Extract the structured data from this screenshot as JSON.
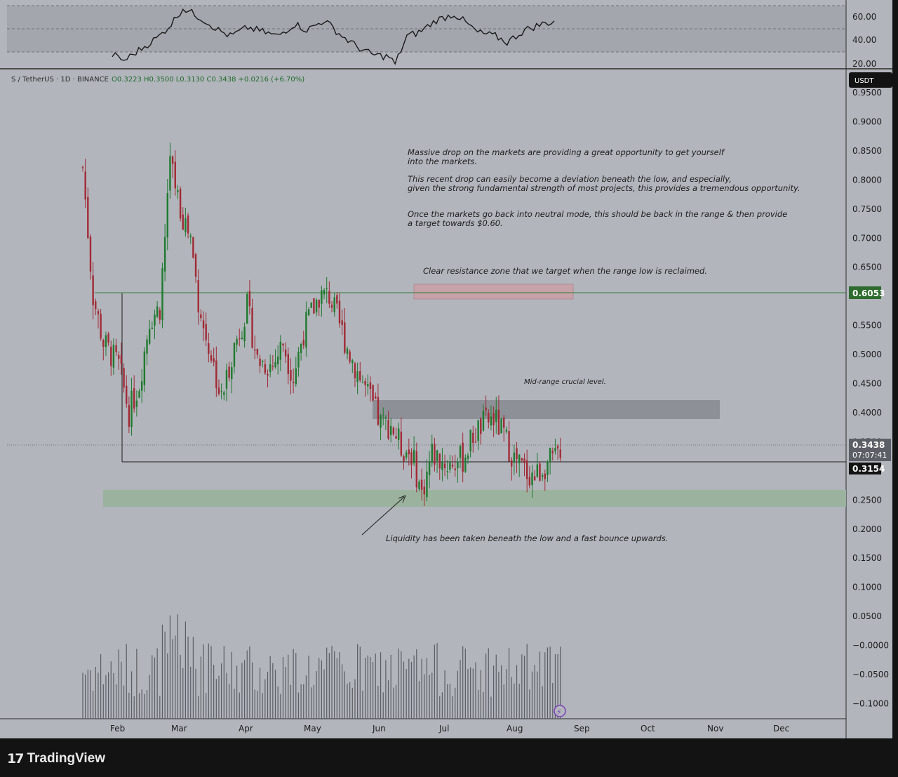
{
  "app": {
    "brand": "TradingView",
    "brand_logo": "17"
  },
  "colors": {
    "chart_bg": "#b2b5bc",
    "frame_bg": "#131313",
    "up": "#1f7a2e",
    "down": "#a12a35",
    "resistance_zone": "#c7a2a8",
    "mid_zone": "#8d9096",
    "support_zone": "#9bb39e",
    "resistance_line": "#2e7d32",
    "text": "#1c1c1c"
  },
  "header": {
    "symbol": "S / TetherUS · 1D · BINANCE",
    "ohlc": "O0.3223  H0.3500  L0.3130  C0.3438  +0.0216 (+6.70%)"
  },
  "price_axis": {
    "currency": "USDT",
    "ticks": [
      "0.9500",
      "0.9000",
      "0.8500",
      "0.8000",
      "0.7500",
      "0.7000",
      "0.6500",
      "0.6000",
      "0.5500",
      "0.5000",
      "0.4500",
      "0.4000",
      "0.3500",
      "0.3000",
      "0.2500",
      "0.2000",
      "0.1500",
      "0.1000",
      "0.0500",
      "−0.0000",
      "−0.0500",
      "−0.1000"
    ],
    "resistance_label": "0.6053",
    "last_price_label": "0.3438",
    "countdown": "07:07:41",
    "range_low_label": "0.3154"
  },
  "rsi_axis": {
    "ticks": [
      "60.00",
      "40.00",
      "20.00"
    ]
  },
  "time_axis": {
    "months": [
      "Feb",
      "Mar",
      "Apr",
      "May",
      "Jun",
      "Jul",
      "Aug",
      "Sep",
      "Oct",
      "Nov",
      "Dec"
    ]
  },
  "annotations": {
    "main_line1": "Massive drop on the markets are providing a great opportunity to get yourself",
    "main_line2": "into the markets.",
    "main_line3": "This recent drop can easily become a deviation beneath the low, and especially,",
    "main_line4": "given the strong fundamental strength of most projects, this provides a tremendous opportunity.",
    "main_line5": "Once the markets go back into neutral mode, this should be back in the range & then provide",
    "main_line6": "a target towards $0.60.",
    "resistance": "Clear resistance zone that we target when the range low is reclaimed.",
    "midrange": "Mid-range crucial level.",
    "liquidity": "Liquidity has been taken beneath the low and a fast bounce upwards."
  },
  "chart_data": {
    "type": "candlestick",
    "symbol": "S/USDT",
    "timeframe": "1D",
    "levels": {
      "resistance": 0.6053,
      "range_low": 0.3154,
      "last_price": 0.3438
    },
    "zones": [
      {
        "low": 0.59,
        "high": 0.615
      },
      {
        "low": 0.39,
        "high": 0.42
      },
      {
        "low": 0.235,
        "high": 0.265
      }
    ],
    "ylim": [
      -0.13,
      0.96
    ],
    "rsi_ylim": [
      20,
      70
    ],
    "path_anchors": [
      [
        0,
        0.82
      ],
      [
        4,
        0.6
      ],
      [
        8,
        0.52
      ],
      [
        14,
        0.48
      ],
      [
        18,
        0.4
      ],
      [
        22,
        0.45
      ],
      [
        26,
        0.56
      ],
      [
        30,
        0.58
      ],
      [
        34,
        0.83
      ],
      [
        38,
        0.75
      ],
      [
        42,
        0.7
      ],
      [
        46,
        0.56
      ],
      [
        50,
        0.5
      ],
      [
        54,
        0.42
      ],
      [
        58,
        0.5
      ],
      [
        64,
        0.58
      ],
      [
        68,
        0.49
      ],
      [
        74,
        0.48
      ],
      [
        78,
        0.52
      ],
      [
        82,
        0.46
      ],
      [
        86,
        0.54
      ],
      [
        92,
        0.6
      ],
      [
        96,
        0.6
      ],
      [
        100,
        0.55
      ],
      [
        104,
        0.5
      ],
      [
        108,
        0.46
      ],
      [
        112,
        0.42
      ],
      [
        116,
        0.38
      ],
      [
        120,
        0.38
      ],
      [
        124,
        0.34
      ],
      [
        128,
        0.33
      ],
      [
        132,
        0.26
      ],
      [
        136,
        0.33
      ],
      [
        142,
        0.31
      ],
      [
        148,
        0.32
      ],
      [
        152,
        0.36
      ],
      [
        156,
        0.38
      ],
      [
        160,
        0.39
      ],
      [
        164,
        0.36
      ],
      [
        168,
        0.32
      ],
      [
        172,
        0.3
      ],
      [
        176,
        0.29
      ],
      [
        180,
        0.31
      ],
      [
        184,
        0.32
      ],
      [
        186,
        0.34
      ]
    ],
    "rsi_anchors": [
      [
        0,
        30
      ],
      [
        4,
        25
      ],
      [
        10,
        35
      ],
      [
        16,
        45
      ],
      [
        20,
        55
      ],
      [
        24,
        68
      ],
      [
        30,
        60
      ],
      [
        36,
        50
      ],
      [
        40,
        45
      ],
      [
        46,
        52
      ],
      [
        52,
        48
      ],
      [
        56,
        45
      ],
      [
        62,
        55
      ],
      [
        66,
        50
      ],
      [
        72,
        58
      ],
      [
        78,
        45
      ],
      [
        84,
        35
      ],
      [
        88,
        30
      ],
      [
        94,
        28
      ],
      [
        96,
        22
      ],
      [
        100,
        45
      ],
      [
        104,
        48
      ],
      [
        110,
        58
      ],
      [
        116,
        63
      ],
      [
        118,
        60
      ],
      [
        124,
        48
      ],
      [
        130,
        45
      ],
      [
        134,
        40
      ],
      [
        140,
        50
      ],
      [
        146,
        55
      ],
      [
        150,
        57
      ]
    ]
  }
}
